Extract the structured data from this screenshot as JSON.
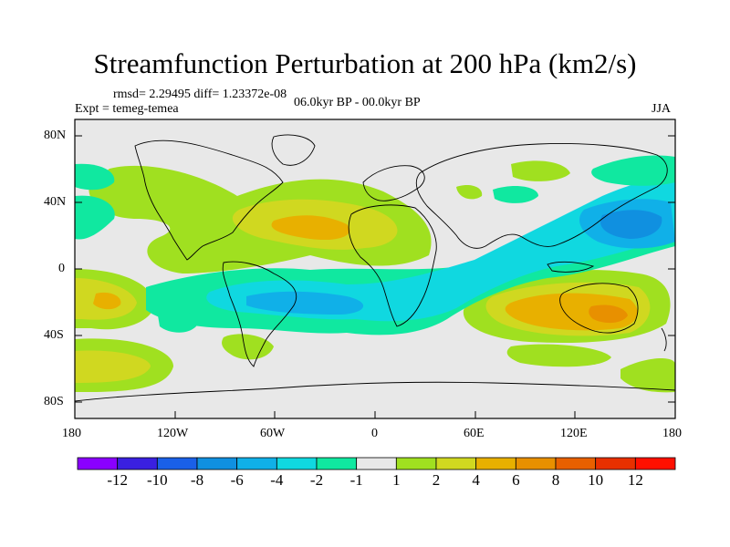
{
  "title": "Streamfunction Perturbation at 200 hPa (km2/s)",
  "stats": "rmsd= 2.29495 diff= 1.23372e-08",
  "experiment": "Expt = temeg-temea",
  "period": "06.0kyr BP - 00.0kyr BP",
  "season": "JJA",
  "lat_ticks": [
    "80N",
    "40N",
    "0",
    "40S",
    "80S"
  ],
  "lon_ticks": [
    "180",
    "120W",
    "60W",
    "0",
    "60E",
    "120E",
    "180"
  ],
  "colorbar": {
    "labels": [
      "-12",
      "-10",
      "-8",
      "-6",
      "-4",
      "-2",
      "-1",
      "1",
      "2",
      "4",
      "6",
      "8",
      "10",
      "12"
    ],
    "colors": [
      "#8a00ff",
      "#3a20e0",
      "#1a60e8",
      "#1090e0",
      "#10b0e8",
      "#10d8e0",
      "#10e8a0",
      "#e8e8e8",
      "#a0e020",
      "#d0d820",
      "#e8b000",
      "#e89000",
      "#e86000",
      "#e83000",
      "#ff1000"
    ]
  },
  "legend": {
    "ocean": "#e8e8e8"
  }
}
